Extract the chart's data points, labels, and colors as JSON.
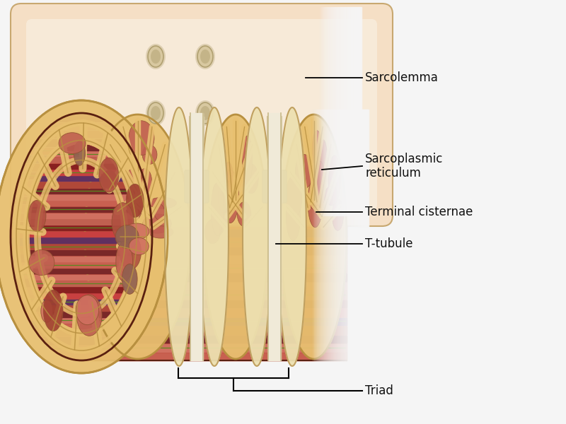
{
  "bg_color": "#f5f5f5",
  "sarcolemma_fill": "#f5dfc5",
  "sarcolemma_edge": "#c8a870",
  "sarcolemma_inner": "#faf0e0",
  "sr_fill": "#e8c070",
  "sr_edge": "#b89040",
  "sr_dark": "#c8a050",
  "tc_fill": "#ede0b0",
  "tc_edge": "#c0a060",
  "ttubule_fill": "#f0ead8",
  "ttubule_edge": "#c8b888",
  "muscle_bg": "#c05040",
  "muscle_stripes": [
    "#c86050",
    "#d07060",
    "#7a2828",
    "#b04838",
    "#603060",
    "#c84040",
    "#882020",
    "#c06050",
    "#d07060",
    "#7a2828"
  ],
  "muscle_green": "#5a8820",
  "muscle_purple": "#5a2858",
  "muscle_dark_stripe": "#3a1818",
  "gray_color": "#909090",
  "pore_fill": "#d8c8a0",
  "pore_edge": "#b0a070",
  "label_color": "#111111",
  "label_fontsize": 12,
  "labels": {
    "sarcolemma": "Sarcolemma",
    "sr": "Sarcoplasmic\nreticulum",
    "tc": "Terminal cisternae",
    "tt": "T-tubule",
    "triad": "Triad"
  }
}
